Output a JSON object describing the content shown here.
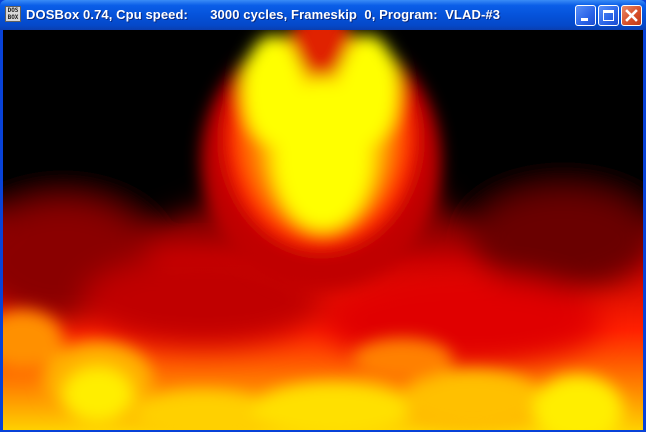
{
  "window": {
    "title": "DOSBox 0.74, Cpu speed:      3000 cycles, Frameskip  0, Program:  VLAD-#3",
    "icon_text_top": "DOS",
    "icon_text_bottom": "BOX",
    "icon_name": "dosbox-app-icon"
  },
  "controls": {
    "minimize_icon": "minimize-icon",
    "maximize_icon": "maximize-icon",
    "close_icon": "close-icon"
  },
  "colors": {
    "titlebar_blue": "#0551d8",
    "close_red": "#d8502a",
    "flame_yellow": "#ffff00",
    "flame_orange": "#ff8000",
    "flame_red": "#ff0000",
    "background": "#000000"
  }
}
